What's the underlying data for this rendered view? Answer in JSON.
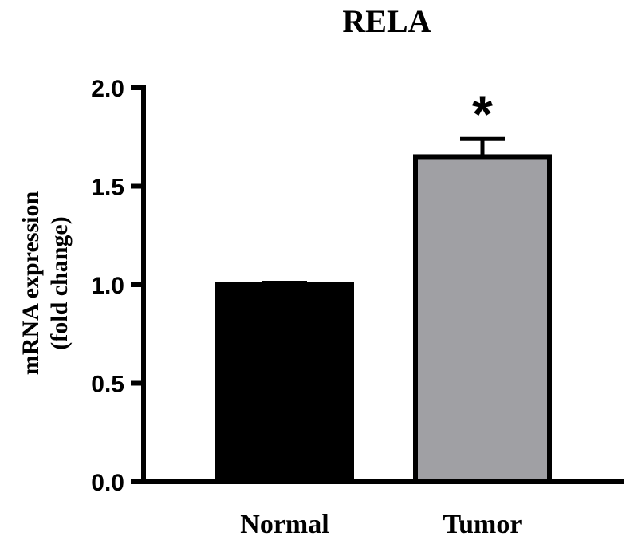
{
  "chart_data": {
    "type": "bar",
    "title": "RELA",
    "ylabel_line1": "mRNA expression",
    "ylabel_line2": "(fold change)",
    "xlabel": "",
    "categories": [
      "Normal",
      "Tumor"
    ],
    "values": [
      1.0,
      1.65
    ],
    "errors": [
      0.01,
      0.09
    ],
    "bar_colors": [
      "#000000",
      "#a0a0a4"
    ],
    "annotations": [
      "",
      "*"
    ],
    "ylim": [
      0,
      2.0
    ],
    "yticks": [
      "0.0",
      "0.5",
      "1.0",
      "1.5",
      "2.0"
    ],
    "ytick_values": [
      0,
      0.5,
      1.0,
      1.5,
      2.0
    ],
    "grid": false,
    "legend": "none"
  }
}
